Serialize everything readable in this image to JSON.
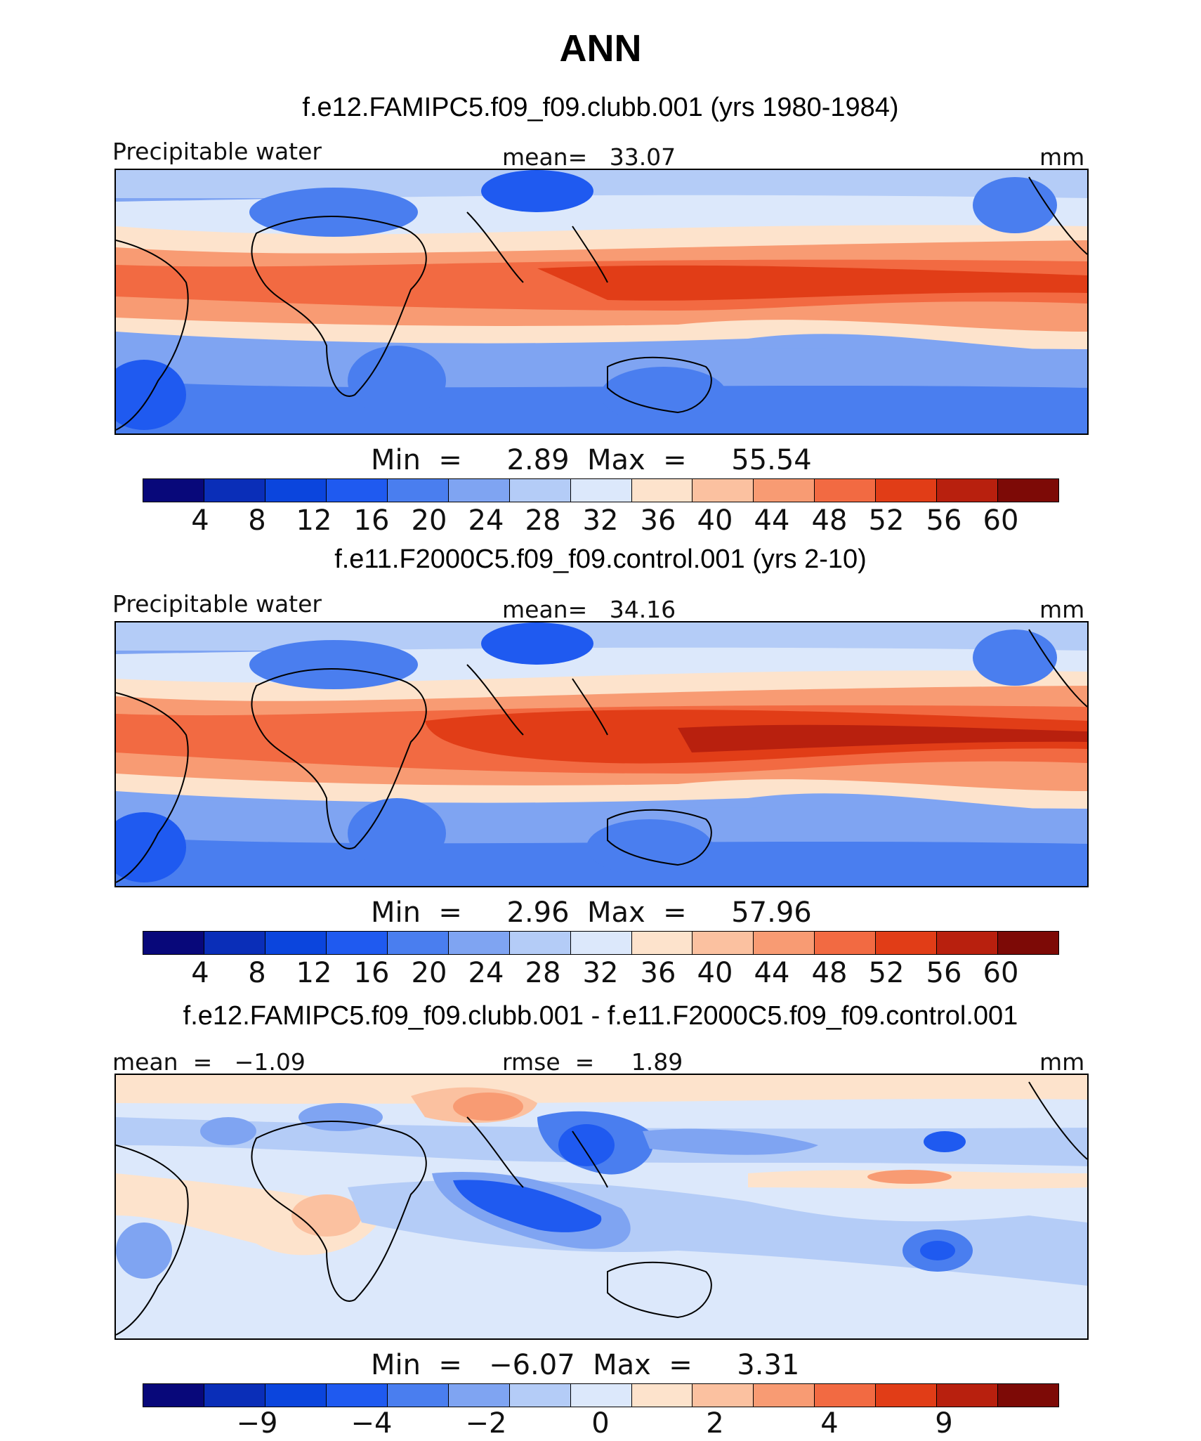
{
  "title": "ANN",
  "panels": [
    {
      "case": "f.e12.FAMIPC5.f09_f09.clubb.001 (yrs 1980-1984)",
      "left_label": "Precipitable water",
      "center_label": "mean=   33.07",
      "units": "mm",
      "minmax": "Min  =     2.89  Max  =     55.54",
      "colorbar_ticks": [
        "4",
        "8",
        "12",
        "16",
        "20",
        "24",
        "28",
        "32",
        "36",
        "40",
        "44",
        "48",
        "52",
        "56",
        "60"
      ]
    },
    {
      "case": "f.e11.F2000C5.f09_f09.control.001 (yrs 2-10)",
      "left_label": "Precipitable water",
      "center_label": "mean=   34.16",
      "units": "mm",
      "minmax": "Min  =     2.96  Max  =     57.96",
      "colorbar_ticks": [
        "4",
        "8",
        "12",
        "16",
        "20",
        "24",
        "28",
        "32",
        "36",
        "40",
        "44",
        "48",
        "52",
        "56",
        "60"
      ]
    },
    {
      "case": "f.e12.FAMIPC5.f09_f09.clubb.001 - f.e11.F2000C5.f09_f09.control.001",
      "left_label": "mean  =   −1.09",
      "center_label": "rmse  =     1.89",
      "units": "mm",
      "minmax": "Min  =   −6.07  Max  =     3.31",
      "colorbar_ticks": [
        "−9",
        "−4",
        "−2",
        "0",
        "2",
        "4",
        "9"
      ]
    }
  ],
  "colorbar_colors": [
    "#08087a",
    "#0a2eb8",
    "#0b45dd",
    "#1f5af0",
    "#4a7eef",
    "#7fa4f2",
    "#b4ccf7",
    "#dce8fb",
    "#fde3cc",
    "#fbc1a0",
    "#f89b73",
    "#f26a42",
    "#e13d17",
    "#b8200e",
    "#7d0a06"
  ]
}
